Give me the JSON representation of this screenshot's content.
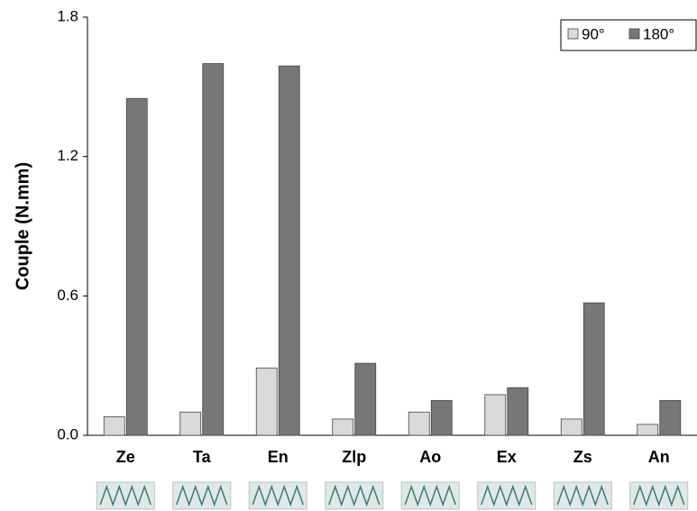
{
  "chart_data": {
    "type": "bar",
    "y_label": "Couple (N.mm)",
    "categories": [
      "Ze",
      "Ta",
      "En",
      "Zlp",
      "Ao",
      "Ex",
      "Zs",
      "An"
    ],
    "series": [
      {
        "name": "90°",
        "color": "#d9d9d9",
        "values": [
          0.08,
          0.1,
          0.29,
          0.07,
          0.1,
          0.175,
          0.07,
          0.047
        ]
      },
      {
        "name": "180°",
        "color": "#777777",
        "values": [
          1.45,
          1.6,
          1.59,
          0.31,
          0.15,
          0.205,
          0.57,
          0.15
        ]
      }
    ],
    "ylim": [
      0,
      1.8
    ],
    "yticks": [
      {
        "value": 0,
        "label": "0.0"
      },
      0.6,
      {
        "value": 1.2,
        "label": "1.2"
      },
      {
        "value": 1.8,
        "label": "1.8"
      }
    ],
    "legend": "top-right",
    "grid": false
  }
}
